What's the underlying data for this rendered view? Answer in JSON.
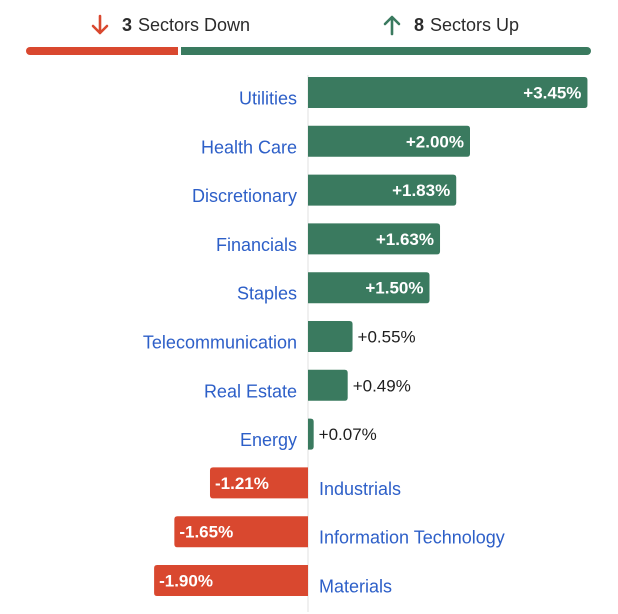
{
  "summary": {
    "down_count": "3",
    "down_label": "Sectors Down",
    "up_count": "8",
    "up_label": "Sectors Up"
  },
  "colors": {
    "up": "#3a7a5f",
    "down": "#d9482f",
    "label": "#2d5fc8"
  },
  "chart_data": {
    "type": "bar",
    "orientation": "horizontal",
    "categories": [
      "Utilities",
      "Health Care",
      "Discretionary",
      "Financials",
      "Staples",
      "Telecommunication",
      "Real Estate",
      "Energy",
      "Industrials",
      "Information Technology",
      "Materials"
    ],
    "values": [
      3.45,
      2.0,
      1.83,
      1.63,
      1.5,
      0.55,
      0.49,
      0.07,
      -1.21,
      -1.65,
      -1.9
    ],
    "labels": [
      "+3.45%",
      "+2.00%",
      "+1.83%",
      "+1.63%",
      "+1.50%",
      "+0.55%",
      "+0.49%",
      "+0.07%",
      "-1.21%",
      "-1.65%",
      "-1.90%"
    ]
  }
}
